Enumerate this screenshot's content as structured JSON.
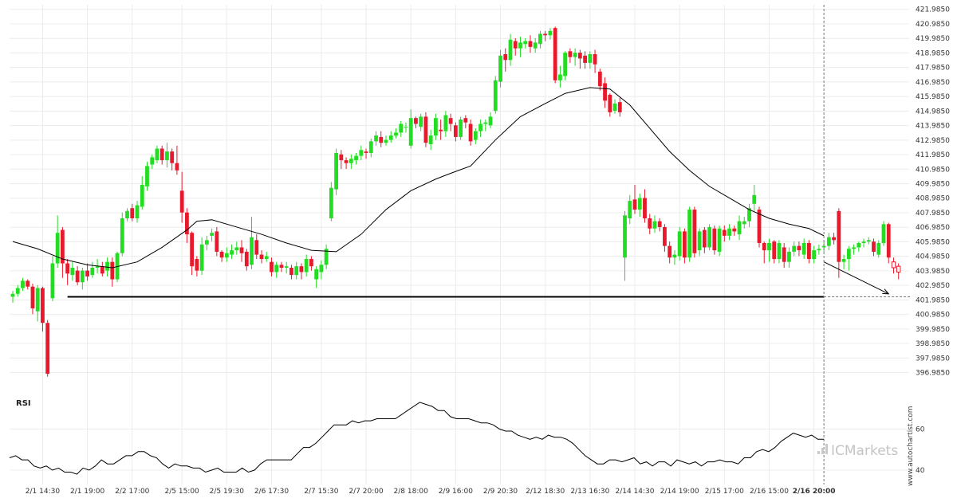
{
  "chart_data": {
    "type": "candlestick",
    "y_ticks": [
      "421.9850",
      "420.9850",
      "419.9850",
      "418.9850",
      "417.9850",
      "416.9850",
      "415.9850",
      "414.9850",
      "413.9850",
      "412.9850",
      "411.9850",
      "410.9850",
      "409.9850",
      "408.9850",
      "407.9850",
      "406.9850",
      "405.9850",
      "404.9850",
      "403.9850",
      "402.9850",
      "401.9850",
      "400.9850",
      "399.9850",
      "398.9850",
      "397.9850",
      "396.9850"
    ],
    "ylim": [
      396.3,
      422.3
    ],
    "x_labels": [
      {
        "label": "2/1 14:30",
        "i": 6
      },
      {
        "label": "2/1 19:00",
        "i": 15
      },
      {
        "label": "2/2 17:00",
        "i": 24
      },
      {
        "label": "2/5 15:00",
        "i": 34
      },
      {
        "label": "2/5 19:30",
        "i": 43
      },
      {
        "label": "2/6 17:30",
        "i": 52
      },
      {
        "label": "2/7 15:30",
        "i": 62
      },
      {
        "label": "2/7 20:00",
        "i": 71
      },
      {
        "label": "2/8 18:00",
        "i": 80
      },
      {
        "label": "2/9 16:00",
        "i": 89
      },
      {
        "label": "2/9 20:30",
        "i": 98
      },
      {
        "label": "2/12 18:30",
        "i": 107
      },
      {
        "label": "2/13 16:30",
        "i": 116
      },
      {
        "label": "2/14 14:30",
        "i": 125
      },
      {
        "label": "2/14 19:00",
        "i": 134
      },
      {
        "label": "2/15 17:00",
        "i": 143
      },
      {
        "label": "2/16 15:00",
        "i": 152
      },
      {
        "label": "2/16 20:00",
        "i": 161
      }
    ],
    "candles": [
      [
        402.2,
        402.4,
        401.8,
        402.6
      ],
      [
        402.4,
        402.8,
        402.2,
        403.0
      ],
      [
        402.8,
        403.3,
        402.6,
        403.5
      ],
      [
        403.3,
        402.9,
        402.7,
        403.4
      ],
      [
        402.9,
        401.4,
        401.0,
        403.1
      ],
      [
        401.2,
        402.8,
        400.5,
        403.0
      ],
      [
        402.8,
        400.4,
        399.8,
        402.9
      ],
      [
        400.4,
        396.9,
        396.7,
        400.6
      ],
      [
        402.1,
        404.5,
        401.9,
        405.0
      ],
      [
        404.5,
        406.6,
        404.2,
        407.8
      ],
      [
        406.8,
        404.5,
        403.5,
        407.0
      ],
      [
        404.5,
        403.8,
        403.0,
        404.8
      ],
      [
        403.7,
        404.2,
        403.3,
        404.6
      ],
      [
        404.0,
        403.2,
        403.0,
        404.3
      ],
      [
        403.2,
        404.0,
        402.7,
        404.2
      ],
      [
        404.0,
        403.6,
        403.3,
        404.5
      ],
      [
        403.7,
        404.2,
        403.5,
        404.6
      ],
      [
        404.2,
        404.3,
        403.8,
        404.8
      ],
      [
        404.3,
        403.8,
        403.6,
        404.6
      ],
      [
        404.0,
        404.6,
        403.6,
        404.9
      ],
      [
        404.6,
        403.4,
        402.9,
        404.9
      ],
      [
        403.4,
        405.2,
        403.2,
        405.3
      ],
      [
        405.2,
        407.6,
        405.0,
        408.0
      ],
      [
        407.6,
        408.1,
        407.4,
        408.3
      ],
      [
        408.3,
        407.6,
        407.4,
        408.6
      ],
      [
        407.6,
        408.5,
        407.3,
        408.8
      ],
      [
        408.4,
        409.9,
        408.2,
        410.5
      ],
      [
        409.8,
        411.2,
        409.5,
        411.5
      ],
      [
        411.3,
        411.8,
        411.0,
        412.0
      ],
      [
        411.6,
        412.4,
        411.4,
        412.6
      ],
      [
        412.4,
        411.6,
        411.3,
        412.6
      ],
      [
        411.6,
        412.2,
        411.1,
        412.8
      ],
      [
        412.2,
        411.4,
        410.9,
        412.4
      ],
      [
        411.4,
        410.9,
        410.6,
        412.6
      ],
      [
        409.5,
        408.0,
        407.3,
        410.8
      ],
      [
        408.0,
        406.5,
        405.9,
        408.3
      ],
      [
        406.6,
        404.3,
        403.7,
        406.7
      ],
      [
        404.8,
        404.0,
        403.6,
        405.0
      ],
      [
        404.0,
        405.8,
        403.7,
        406.3
      ],
      [
        405.8,
        406.1,
        405.4,
        406.4
      ],
      [
        406.4,
        406.6,
        406.0,
        406.9
      ],
      [
        406.7,
        405.3,
        405.0,
        407.0
      ],
      [
        405.3,
        404.9,
        404.6,
        405.4
      ],
      [
        404.9,
        405.2,
        404.6,
        405.6
      ],
      [
        405.1,
        405.4,
        404.8,
        405.8
      ],
      [
        405.4,
        405.6,
        405.1,
        406.0
      ],
      [
        405.6,
        405.2,
        404.6,
        406.1
      ],
      [
        405.3,
        404.3,
        404.0,
        405.5
      ],
      [
        404.4,
        406.3,
        404.1,
        407.7
      ],
      [
        406.1,
        405.1,
        404.8,
        406.5
      ],
      [
        405.1,
        404.8,
        404.5,
        405.4
      ],
      [
        404.8,
        405.0,
        404.6,
        405.3
      ],
      [
        404.6,
        403.9,
        403.6,
        404.9
      ],
      [
        403.9,
        404.4,
        403.5,
        404.6
      ],
      [
        404.4,
        404.2,
        403.9,
        404.6
      ],
      [
        404.2,
        404.3,
        403.8,
        404.6
      ],
      [
        404.2,
        403.7,
        403.4,
        404.4
      ],
      [
        403.7,
        404.3,
        403.4,
        404.6
      ],
      [
        404.3,
        403.9,
        403.4,
        404.5
      ],
      [
        403.9,
        404.8,
        403.6,
        405.1
      ],
      [
        404.8,
        404.3,
        404.0,
        405.0
      ],
      [
        403.4,
        404.1,
        402.8,
        404.3
      ],
      [
        403.9,
        404.4,
        403.4,
        404.7
      ],
      [
        404.4,
        405.5,
        404.1,
        405.8
      ],
      [
        407.6,
        409.7,
        407.4,
        410.1
      ],
      [
        409.6,
        412.1,
        409.2,
        412.4
      ],
      [
        412.0,
        411.6,
        411.0,
        412.3
      ],
      [
        411.6,
        411.4,
        411.0,
        411.8
      ],
      [
        411.4,
        411.7,
        411.0,
        412.0
      ],
      [
        411.6,
        411.9,
        411.3,
        412.1
      ],
      [
        411.9,
        412.3,
        411.6,
        412.6
      ],
      [
        412.2,
        412.1,
        411.7,
        412.4
      ],
      [
        412.1,
        412.9,
        411.8,
        413.1
      ],
      [
        412.9,
        413.3,
        412.6,
        413.6
      ],
      [
        413.2,
        412.8,
        412.5,
        413.6
      ],
      [
        412.8,
        413.0,
        412.6,
        413.3
      ],
      [
        413.0,
        413.3,
        412.8,
        413.6
      ],
      [
        413.3,
        413.5,
        413.1,
        413.8
      ],
      [
        413.5,
        414.1,
        413.2,
        414.3
      ],
      [
        413.9,
        413.9,
        413.5,
        414.2
      ],
      [
        412.6,
        414.5,
        412.4,
        415.1
      ],
      [
        414.5,
        414.1,
        413.8,
        414.6
      ],
      [
        413.9,
        414.6,
        413.6,
        414.8
      ],
      [
        414.6,
        412.8,
        412.5,
        414.9
      ],
      [
        412.7,
        413.3,
        412.3,
        413.7
      ],
      [
        413.3,
        414.5,
        413.0,
        414.8
      ],
      [
        413.7,
        413.6,
        413.0,
        414.4
      ],
      [
        413.6,
        414.7,
        413.2,
        415.0
      ],
      [
        414.5,
        414.1,
        413.6,
        414.8
      ],
      [
        414.0,
        413.2,
        412.9,
        414.2
      ],
      [
        413.2,
        414.4,
        413.0,
        414.6
      ],
      [
        414.5,
        414.2,
        413.8,
        414.7
      ],
      [
        414.1,
        412.9,
        412.6,
        414.4
      ],
      [
        413.0,
        413.6,
        412.7,
        413.8
      ],
      [
        413.6,
        414.1,
        413.2,
        414.4
      ],
      [
        414.1,
        414.2,
        413.6,
        414.4
      ],
      [
        414.0,
        414.6,
        413.8,
        414.9
      ],
      [
        415.0,
        417.1,
        414.8,
        417.4
      ],
      [
        417.0,
        418.8,
        416.6,
        419.2
      ],
      [
        418.9,
        418.5,
        417.7,
        419.3
      ],
      [
        418.5,
        419.9,
        418.1,
        420.3
      ],
      [
        419.8,
        419.3,
        418.8,
        420.0
      ],
      [
        419.3,
        419.7,
        418.7,
        420.1
      ],
      [
        419.6,
        419.8,
        419.3,
        420.0
      ],
      [
        419.8,
        419.4,
        419.0,
        420.2
      ],
      [
        419.3,
        419.7,
        419.0,
        420.0
      ],
      [
        419.6,
        420.3,
        419.3,
        420.5
      ],
      [
        420.3,
        420.2,
        419.8,
        420.5
      ],
      [
        420.2,
        420.5,
        419.9,
        420.7
      ],
      [
        420.7,
        417.1,
        416.9,
        420.8
      ],
      [
        417.1,
        417.5,
        416.6,
        418.1
      ],
      [
        417.4,
        419.0,
        417.1,
        419.1
      ],
      [
        419.1,
        418.7,
        418.3,
        419.3
      ],
      [
        418.7,
        419.0,
        418.1,
        419.3
      ],
      [
        419.0,
        418.6,
        417.9,
        419.2
      ],
      [
        418.8,
        418.3,
        417.9,
        419.1
      ],
      [
        418.3,
        418.9,
        417.9,
        419.1
      ],
      [
        418.9,
        418.2,
        417.6,
        419.2
      ],
      [
        417.7,
        416.7,
        416.4,
        417.9
      ],
      [
        416.9,
        415.7,
        415.2,
        417.3
      ],
      [
        416.1,
        414.9,
        414.6,
        416.2
      ],
      [
        415.0,
        415.5,
        414.8,
        415.8
      ],
      [
        415.6,
        414.9,
        414.6,
        415.9
      ],
      [
        404.9,
        407.8,
        403.3,
        408.1
      ],
      [
        407.6,
        408.8,
        407.2,
        409.2
      ],
      [
        408.9,
        408.2,
        407.9,
        409.9
      ],
      [
        408.2,
        409.0,
        407.7,
        409.3
      ],
      [
        409.0,
        407.6,
        407.3,
        409.6
      ],
      [
        407.6,
        406.9,
        406.5,
        407.9
      ],
      [
        406.9,
        407.4,
        406.6,
        407.8
      ],
      [
        407.4,
        407.0,
        406.7,
        407.6
      ],
      [
        407.0,
        405.7,
        405.3,
        407.2
      ],
      [
        405.7,
        404.9,
        404.5,
        406.0
      ],
      [
        404.9,
        405.1,
        404.4,
        405.4
      ],
      [
        405.0,
        406.7,
        404.7,
        407.0
      ],
      [
        406.7,
        404.9,
        404.5,
        406.9
      ],
      [
        404.9,
        408.2,
        404.6,
        408.4
      ],
      [
        408.2,
        405.2,
        404.9,
        408.4
      ],
      [
        405.4,
        406.7,
        405.0,
        406.9
      ],
      [
        406.8,
        405.6,
        405.2,
        407.0
      ],
      [
        405.6,
        407.0,
        405.4,
        407.2
      ],
      [
        406.9,
        405.4,
        405.1,
        407.1
      ],
      [
        405.3,
        406.9,
        405.0,
        407.1
      ],
      [
        406.8,
        406.4,
        406.0,
        407.1
      ],
      [
        406.4,
        406.9,
        406.1,
        407.2
      ],
      [
        406.9,
        406.7,
        406.4,
        407.1
      ],
      [
        406.5,
        407.4,
        406.1,
        407.8
      ],
      [
        407.2,
        407.4,
        406.9,
        407.7
      ],
      [
        407.4,
        408.3,
        407.0,
        408.6
      ],
      [
        408.6,
        409.2,
        408.1,
        409.9
      ],
      [
        408.2,
        405.9,
        405.6,
        408.4
      ],
      [
        405.9,
        405.4,
        404.5,
        406.0
      ],
      [
        405.4,
        405.9,
        404.6,
        406.2
      ],
      [
        406.0,
        404.8,
        404.5,
        406.1
      ],
      [
        404.8,
        405.9,
        404.5,
        406.1
      ],
      [
        405.6,
        404.6,
        404.2,
        405.9
      ],
      [
        404.6,
        405.3,
        404.2,
        405.6
      ],
      [
        405.3,
        405.7,
        405.0,
        406.0
      ],
      [
        405.7,
        405.4,
        405.0,
        406.0
      ],
      [
        405.1,
        405.9,
        404.8,
        406.2
      ],
      [
        405.9,
        404.8,
        404.5,
        406.1
      ],
      [
        404.8,
        405.4,
        404.5,
        405.7
      ],
      [
        405.4,
        405.5,
        405.1,
        405.8
      ],
      [
        405.6,
        405.7,
        405.3,
        406.0
      ],
      [
        405.7,
        406.3,
        405.4,
        406.6
      ],
      [
        406.3,
        406.1,
        405.8,
        406.6
      ],
      [
        408.1,
        404.6,
        403.5,
        408.3
      ],
      [
        404.6,
        404.8,
        404.1,
        405.1
      ],
      [
        404.8,
        405.5,
        404.0,
        405.7
      ],
      [
        405.5,
        405.6,
        405.1,
        405.8
      ],
      [
        405.6,
        405.9,
        405.3,
        406.0
      ],
      [
        405.9,
        406.0,
        405.6,
        406.2
      ],
      [
        406.0,
        406.1,
        405.8,
        406.3
      ],
      [
        406.0,
        405.3,
        405.0,
        406.2
      ],
      [
        405.1,
        405.9,
        404.9,
        406.1
      ],
      [
        405.9,
        407.2,
        405.7,
        407.4
      ],
      [
        407.2,
        404.9,
        404.5,
        407.3
      ],
      [
        404.6,
        404.2,
        403.8,
        404.9
      ],
      [
        404.3,
        403.9,
        403.4,
        404.5
      ]
    ],
    "ma_line": [
      [
        0,
        406.0
      ],
      [
        5,
        405.5
      ],
      [
        10,
        404.8
      ],
      [
        15,
        404.4
      ],
      [
        20,
        404.2
      ],
      [
        25,
        404.6
      ],
      [
        30,
        405.6
      ],
      [
        35,
        406.8
      ],
      [
        37,
        407.4
      ],
      [
        40,
        407.5
      ],
      [
        45,
        407.0
      ],
      [
        50,
        406.5
      ],
      [
        55,
        405.9
      ],
      [
        60,
        405.4
      ],
      [
        65,
        405.3
      ],
      [
        70,
        406.5
      ],
      [
        75,
        408.2
      ],
      [
        80,
        409.5
      ],
      [
        85,
        410.3
      ],
      [
        88,
        410.7
      ],
      [
        92,
        411.2
      ],
      [
        97,
        413.0
      ],
      [
        102,
        414.6
      ],
      [
        107,
        415.5
      ],
      [
        111,
        416.2
      ],
      [
        116,
        416.6
      ],
      [
        120,
        416.5
      ],
      [
        124,
        415.4
      ],
      [
        128,
        413.8
      ],
      [
        132,
        412.2
      ],
      [
        136,
        410.9
      ],
      [
        140,
        409.8
      ],
      [
        144,
        409.0
      ],
      [
        148,
        408.2
      ],
      [
        152,
        407.6
      ],
      [
        156,
        407.2
      ],
      [
        160,
        406.9
      ],
      [
        163,
        406.4
      ]
    ],
    "projection": [
      [
        163,
        404.6
      ],
      [
        176,
        402.4
      ]
    ],
    "resistance_level": 402.2,
    "resistance_span": [
      11,
      163
    ],
    "rsi": {
      "label": "RSI",
      "ticks": [
        "60",
        "40"
      ],
      "range": [
        33,
        78
      ],
      "values": [
        46,
        47,
        45,
        45,
        42,
        41,
        42,
        40,
        41,
        39,
        39,
        38,
        41,
        40,
        42,
        45,
        43,
        43,
        45,
        47,
        47,
        49,
        49,
        47,
        46,
        43,
        41,
        43,
        42,
        42,
        41,
        41,
        39,
        40,
        41,
        39,
        39,
        39,
        41,
        39,
        40,
        43,
        45,
        45,
        45,
        45,
        45,
        48,
        51,
        51,
        53,
        56,
        59,
        62,
        62,
        62,
        64,
        63,
        64,
        64,
        65,
        65,
        65,
        65,
        67,
        69,
        71,
        73,
        72,
        71,
        69,
        69,
        66,
        65,
        65,
        65,
        64,
        63,
        63,
        62,
        60,
        59,
        59,
        57,
        56,
        55,
        56,
        55,
        57,
        56,
        56,
        55,
        53,
        50,
        47,
        45,
        43,
        43,
        45,
        45,
        44,
        45,
        46,
        43,
        44,
        42,
        44,
        44,
        42,
        45,
        44,
        43,
        44,
        42,
        44,
        44,
        45,
        44,
        44,
        43,
        46,
        46,
        49,
        50,
        49,
        51,
        54,
        56,
        58,
        57,
        56,
        57,
        55,
        55
      ]
    },
    "watermark_site": "www.autochartist.com",
    "watermark_brand": "ICMarkets",
    "colors": {
      "up": "#22dd22",
      "down": "#e8192c",
      "ma": "#000000",
      "level": "#000000",
      "grid": "#ececec",
      "axis_text": "#333333"
    }
  }
}
